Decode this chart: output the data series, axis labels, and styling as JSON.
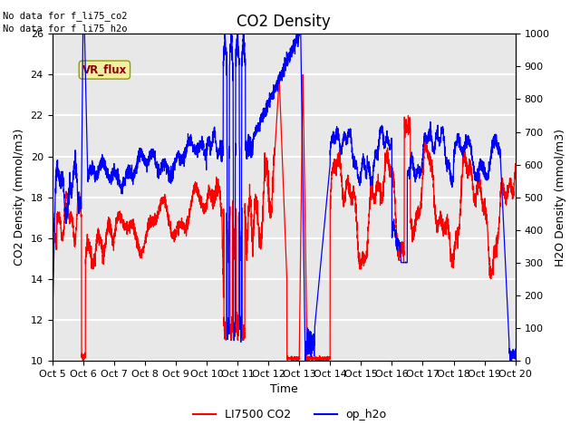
{
  "title": "CO2 Density",
  "xlabel": "Time",
  "ylabel_left": "CO2 Density (mmol/m3)",
  "ylabel_right": "H2O Density (mmol/m3)",
  "ylim_left": [
    10,
    26
  ],
  "ylim_right": [
    0,
    1000
  ],
  "yticks_left": [
    10,
    12,
    14,
    16,
    18,
    20,
    22,
    24,
    26
  ],
  "yticks_right": [
    0,
    100,
    200,
    300,
    400,
    500,
    600,
    700,
    800,
    900,
    1000
  ],
  "xtick_labels": [
    "Oct 5",
    "Oct 6",
    "Oct 7",
    "Oct 8",
    "Oct 9",
    "Oct 10",
    "Oct 11",
    "Oct 12",
    "Oct 13",
    "Oct 14",
    "Oct 15",
    "Oct 16",
    "Oct 17",
    "Oct 18",
    "Oct 19",
    "Oct 20"
  ],
  "annotations": [
    "No data for f_li75_co2",
    "No data for f_li75_h2o"
  ],
  "legend_entries": [
    "LI7500 CO2",
    "op_h2o"
  ],
  "vr_flux_label": "VR_flux",
  "background_color": "#e8e8e8",
  "grid_color": "white",
  "line_color_co2": "red",
  "line_color_h2o": "blue",
  "title_fontsize": 12,
  "label_fontsize": 9,
  "tick_fontsize": 8,
  "linewidth": 0.9
}
